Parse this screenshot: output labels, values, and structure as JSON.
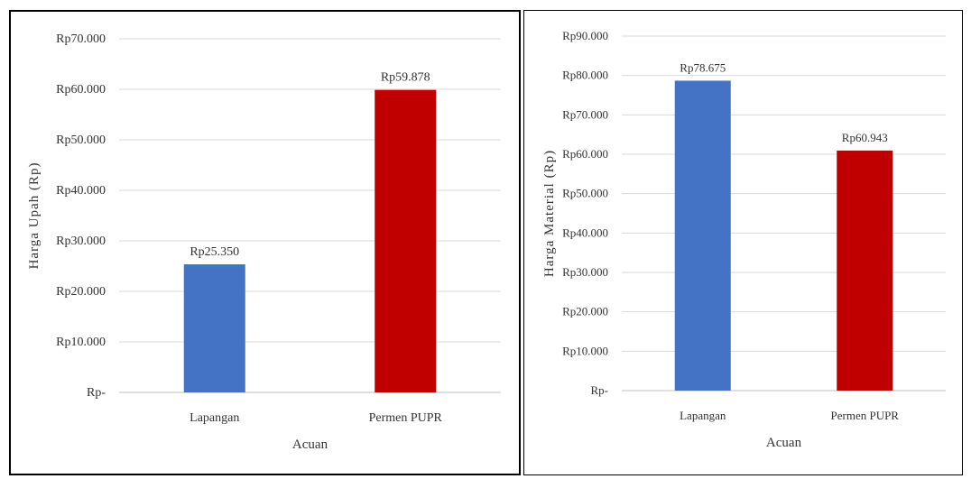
{
  "chart_data": [
    {
      "type": "bar",
      "categories": [
        "Lapangan",
        "Permen PUPR"
      ],
      "values": [
        25350,
        59878
      ],
      "data_labels": [
        "Rp25.350",
        "Rp59.878"
      ],
      "colors": [
        "#4472C4",
        "#C00000"
      ],
      "ylabel": "Harga Upah (Rp)",
      "xlabel": "Acuan",
      "ylim": [
        0,
        70000
      ],
      "yticks": [
        0,
        10000,
        20000,
        30000,
        40000,
        50000,
        60000,
        70000
      ],
      "ytick_labels": [
        "Rp-",
        "Rp10.000",
        "Rp20.000",
        "Rp30.000",
        "Rp40.000",
        "Rp50.000",
        "Rp60.000",
        "Rp70.000"
      ],
      "grid": true
    },
    {
      "type": "bar",
      "categories": [
        "Lapangan",
        "Permen PUPR"
      ],
      "values": [
        78675,
        60943
      ],
      "data_labels": [
        "Rp78.675",
        "Rp60.943"
      ],
      "colors": [
        "#4472C4",
        "#C00000"
      ],
      "ylabel": "Harga Material (Rp)",
      "xlabel": "Acuan",
      "ylim": [
        0,
        90000
      ],
      "yticks": [
        0,
        10000,
        20000,
        30000,
        40000,
        50000,
        60000,
        70000,
        80000,
        90000
      ],
      "ytick_labels": [
        "Rp-",
        "Rp10.000",
        "Rp20.000",
        "Rp30.000",
        "Rp40.000",
        "Rp50.000",
        "Rp60.000",
        "Rp70.000",
        "Rp80.000",
        "Rp90.000"
      ],
      "grid": true
    }
  ]
}
